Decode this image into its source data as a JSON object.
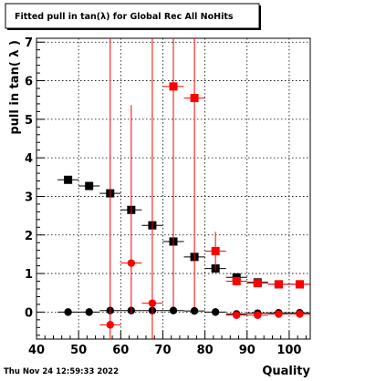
{
  "chart_data": {
    "type": "scatter",
    "title": "Fitted pull in tan(λ) for Global Rec All NoHits",
    "xlabel": "Quality",
    "ylabel": "pull in tan( λ )",
    "xlim": [
      40,
      105
    ],
    "ylim": [
      -0.7,
      7.1
    ],
    "x_ticks": [
      40,
      50,
      60,
      70,
      80,
      90,
      100
    ],
    "x_tick_labels": [
      "40",
      "50",
      "60",
      "70",
      "80",
      "90",
      "100"
    ],
    "y_ticks": [
      0,
      1,
      2,
      3,
      4,
      5,
      6,
      7
    ],
    "y_tick_labels": [
      "0",
      "1",
      "2",
      "3",
      "4",
      "5",
      "6",
      "7"
    ],
    "grid": true,
    "footer": "Thu Nov 24 12:59:33 2022",
    "series": [
      {
        "marker": "square",
        "color": "#000000",
        "x": [
          47.5,
          52.5,
          57.5,
          62.5,
          67.5,
          72.5,
          77.5,
          82.5,
          87.5,
          92.5,
          97.5,
          102.5
        ],
        "y": [
          3.43,
          3.27,
          3.08,
          2.65,
          2.25,
          1.83,
          1.43,
          1.13,
          0.9,
          0.77,
          0.72,
          0.72
        ],
        "y_err": [
          0,
          0,
          0,
          0,
          0,
          0,
          0,
          0,
          0,
          0,
          0,
          0
        ]
      },
      {
        "marker": "square",
        "color": "#ff0000",
        "x": [
          82.5,
          87.5,
          92.5,
          97.5,
          102.5
        ],
        "y": [
          1.58,
          0.8,
          0.75,
          0.72,
          0.72
        ],
        "y_err": [
          0.5,
          0,
          0,
          0,
          0
        ],
        "extra": [
          {
            "x": 72.5,
            "y": 5.85,
            "y_err_low": 5.85,
            "y_err_high": 1.3
          },
          {
            "x": 77.5,
            "y": 5.55,
            "y_err_low": 5.55,
            "y_err_high": 1.6
          }
        ]
      },
      {
        "marker": "circle",
        "color": "#000000",
        "x": [
          47.5,
          52.5,
          57.5,
          62.5,
          67.5,
          72.5,
          77.5,
          82.5,
          87.5,
          92.5,
          97.5,
          102.5
        ],
        "y": [
          0.0,
          0.0,
          0.04,
          0.04,
          0.04,
          0.04,
          0.03,
          0.0,
          -0.05,
          -0.03,
          -0.02,
          -0.02
        ],
        "y_err": [
          0,
          0,
          0,
          0,
          0,
          0,
          0,
          0,
          0,
          0,
          0,
          0
        ]
      },
      {
        "marker": "circle",
        "color": "#ff0000",
        "x": [
          57.5,
          62.5,
          67.5,
          87.5,
          92.5,
          97.5,
          102.5
        ],
        "y": [
          -0.33,
          1.27,
          0.23,
          -0.08,
          -0.08,
          -0.05,
          -0.05
        ],
        "y_err_low": [
          0.5,
          1.3,
          1.0,
          0,
          0,
          0,
          0
        ],
        "y_err_high": [
          7.5,
          4.1,
          7.0,
          0,
          0,
          0,
          0
        ]
      }
    ]
  }
}
